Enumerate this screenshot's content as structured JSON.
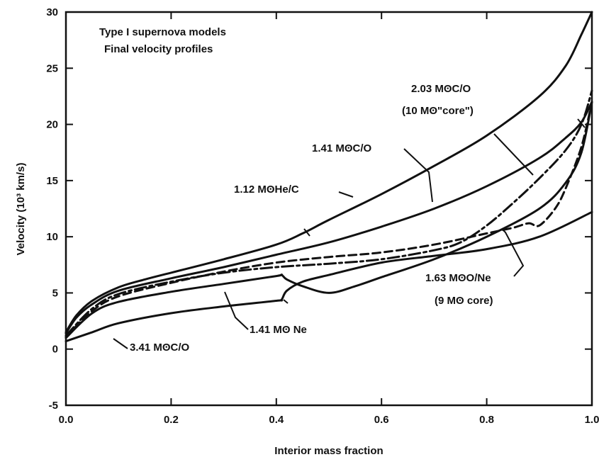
{
  "chart_data": {
    "type": "line",
    "title": "Type I supernova models",
    "subtitle": "Final velocity profiles",
    "xlabel": "Interior mass fraction",
    "ylabel": "Velocity (10³ km/s)",
    "xlim": [
      0.0,
      1.0
    ],
    "ylim": [
      -5,
      30
    ],
    "x_ticks": [
      "0.0",
      "0.2",
      "0.4",
      "0.6",
      "0.8",
      "1.0"
    ],
    "y_ticks": [
      "-5",
      "0",
      "5",
      "10",
      "15",
      "20",
      "25",
      "30"
    ],
    "grid": false,
    "series": [
      {
        "name": "1.12 MʘHe/C",
        "style": "solid",
        "x": [
          0.0,
          0.02,
          0.05,
          0.1,
          0.15,
          0.2,
          0.3,
          0.4,
          0.45,
          0.5,
          0.6,
          0.7,
          0.8,
          0.9,
          0.95,
          0.98,
          1.0
        ],
        "y": [
          1.5,
          3.0,
          4.3,
          5.5,
          6.2,
          6.8,
          8.0,
          9.3,
          10.3,
          11.5,
          13.8,
          16.3,
          19.0,
          22.5,
          25.2,
          28.0,
          30.0
        ]
      },
      {
        "name": "1.41 MʘC/O",
        "style": "solid",
        "x": [
          0.0,
          0.02,
          0.05,
          0.1,
          0.2,
          0.3,
          0.4,
          0.5,
          0.6,
          0.7,
          0.8,
          0.9,
          0.95,
          0.98,
          1.0
        ],
        "y": [
          1.4,
          2.8,
          4.0,
          5.2,
          6.3,
          7.3,
          8.4,
          9.5,
          10.9,
          12.5,
          14.5,
          17.0,
          18.8,
          20.2,
          22.0
        ]
      },
      {
        "name": "2.03 MʘC/O (10 Mʘ\"core\")",
        "style": "dash-dot",
        "x": [
          0.0,
          0.05,
          0.1,
          0.2,
          0.3,
          0.4,
          0.5,
          0.6,
          0.7,
          0.75,
          0.8,
          0.85,
          0.9,
          0.95,
          0.98,
          1.0
        ],
        "y": [
          1.2,
          3.6,
          4.9,
          6.0,
          6.8,
          7.3,
          7.6,
          8.0,
          8.8,
          9.5,
          11.0,
          13.0,
          15.2,
          17.7,
          20.0,
          23.0
        ]
      },
      {
        "name": "1.63 MʘO/Ne (9 Mʘ core)",
        "style": "dashed",
        "x": [
          0.0,
          0.05,
          0.1,
          0.2,
          0.3,
          0.4,
          0.5,
          0.6,
          0.7,
          0.8,
          0.85,
          0.88,
          0.9,
          0.93,
          0.95,
          0.98,
          1.0
        ],
        "y": [
          1.1,
          3.4,
          4.7,
          5.9,
          6.9,
          7.7,
          8.2,
          8.6,
          9.3,
          10.3,
          10.8,
          11.2,
          11.0,
          12.5,
          14.3,
          18.0,
          22.0
        ]
      },
      {
        "name": "1.41 Mʘ Ne",
        "style": "solid",
        "x": [
          0.0,
          0.05,
          0.1,
          0.2,
          0.3,
          0.4,
          0.41,
          0.42,
          0.45,
          0.5,
          0.55,
          0.6,
          0.7,
          0.8,
          0.9,
          0.95,
          0.98,
          1.0
        ],
        "y": [
          1.0,
          3.2,
          4.2,
          5.1,
          5.8,
          6.5,
          6.6,
          6.2,
          5.6,
          5.0,
          5.6,
          6.4,
          8.0,
          10.0,
          12.5,
          14.8,
          17.5,
          22.0
        ]
      },
      {
        "name": "1.41 MʘC/O",
        "style": "solid",
        "x": [
          0.0,
          0.05,
          0.1,
          0.2,
          0.3,
          0.4,
          0.41,
          0.42,
          0.45,
          0.5,
          0.6,
          0.7,
          0.8,
          0.9,
          1.0
        ],
        "y": [
          0.7,
          1.5,
          2.3,
          3.2,
          3.8,
          4.3,
          4.4,
          5.2,
          6.0,
          6.6,
          7.7,
          8.3,
          8.9,
          10.0,
          12.2
        ]
      }
    ],
    "annotations": [
      {
        "line1": "2.03 MʘC/O",
        "line2": "(10 Mʘ\"core\")"
      },
      {
        "line1": "1.41 MʘC/O"
      },
      {
        "line1": "1.12 MʘHe/C"
      },
      {
        "line1": "1.63 MʘO/Ne",
        "line2": "(9 Mʘ core)"
      },
      {
        "line1": "1.41 Mʘ Ne"
      },
      {
        "line1": "3.41 MʘC/O"
      }
    ]
  }
}
